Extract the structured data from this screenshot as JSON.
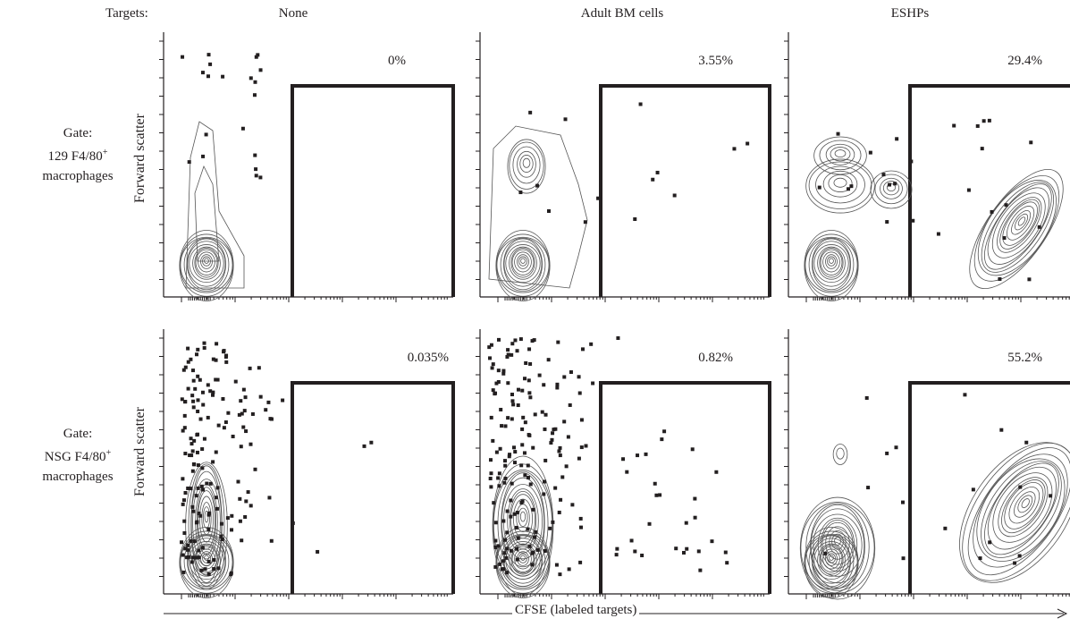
{
  "targets_label": "Targets:",
  "columns": [
    "None",
    "Adult BM cells",
    "ESHPs"
  ],
  "rows": [
    {
      "gate_lines": [
        "Gate:",
        "129 F4/80",
        "macrophages"
      ],
      "superscript": "+",
      "ylabel": "Forward scatter"
    },
    {
      "gate_lines": [
        "Gate:",
        "NSG F4/80",
        "macrophages"
      ],
      "superscript": "+",
      "ylabel": "Forward scatter"
    }
  ],
  "xlabel": "CFSE (labeled targets)",
  "chart_data": {
    "type": "scatter",
    "description": "Flow cytometry contour plots with gate percentages",
    "panels": [
      {
        "row": 0,
        "col": 0,
        "gate_percent": "0%"
      },
      {
        "row": 0,
        "col": 1,
        "gate_percent": "3.55%"
      },
      {
        "row": 0,
        "col": 2,
        "gate_percent": "29.4%"
      },
      {
        "row": 1,
        "col": 0,
        "gate_percent": "0.035%"
      },
      {
        "row": 1,
        "col": 1,
        "gate_percent": "0.82%"
      },
      {
        "row": 1,
        "col": 2,
        "gate_percent": "55.2%"
      }
    ]
  }
}
